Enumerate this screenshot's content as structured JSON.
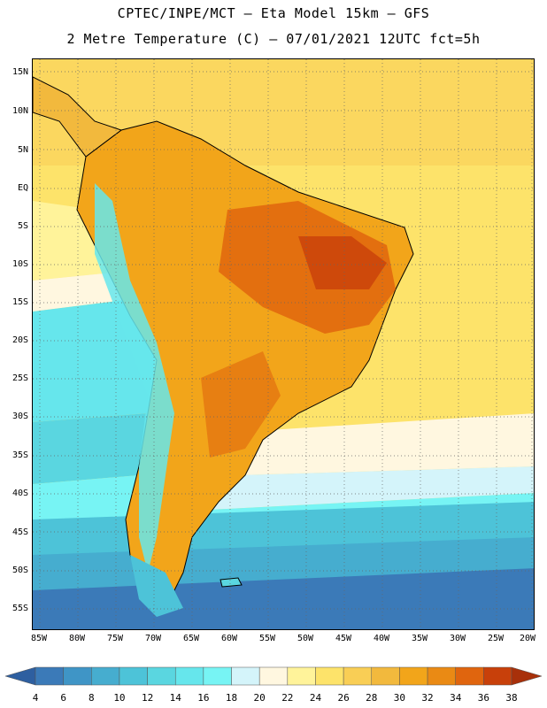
{
  "title": {
    "line1": "CPTEC/INPE/MCT –  Eta Model 15km – GFS",
    "line2": "2 Metre Temperature (C) – 07/01/2021 12UTC fct=5h"
  },
  "axes": {
    "lat_labels": [
      "15N",
      "10N",
      "5N",
      "EQ",
      "5S",
      "10S",
      "15S",
      "20S",
      "25S",
      "30S",
      "35S",
      "40S",
      "45S",
      "50S",
      "55S"
    ],
    "lon_labels": [
      "85W",
      "80W",
      "75W",
      "70W",
      "65W",
      "60W",
      "55W",
      "50W",
      "45W",
      "40W",
      "35W",
      "30W",
      "25W",
      "20W"
    ]
  },
  "colorbar": {
    "labels": [
      "4",
      "6",
      "8",
      "10",
      "12",
      "14",
      "16",
      "18",
      "20",
      "22",
      "24",
      "26",
      "28",
      "30",
      "32",
      "34",
      "36",
      "38"
    ],
    "colors": [
      "#2e5fa0",
      "#3b7ab8",
      "#3f95c6",
      "#46adcf",
      "#4dc3d8",
      "#5ad6e0",
      "#66e6ec",
      "#77f4f4",
      "#d4f4fa",
      "#fff7e0",
      "#fff39a",
      "#fde36a",
      "#f9ce55",
      "#f2b93d",
      "#f2a51a",
      "#ea8a14",
      "#e0650e",
      "#c8400a",
      "#a8300a"
    ]
  },
  "map": {
    "variable": "2 Metre Temperature (C)",
    "valid": "07/01/2021 12UTC",
    "forecast": "fct=5h"
  }
}
